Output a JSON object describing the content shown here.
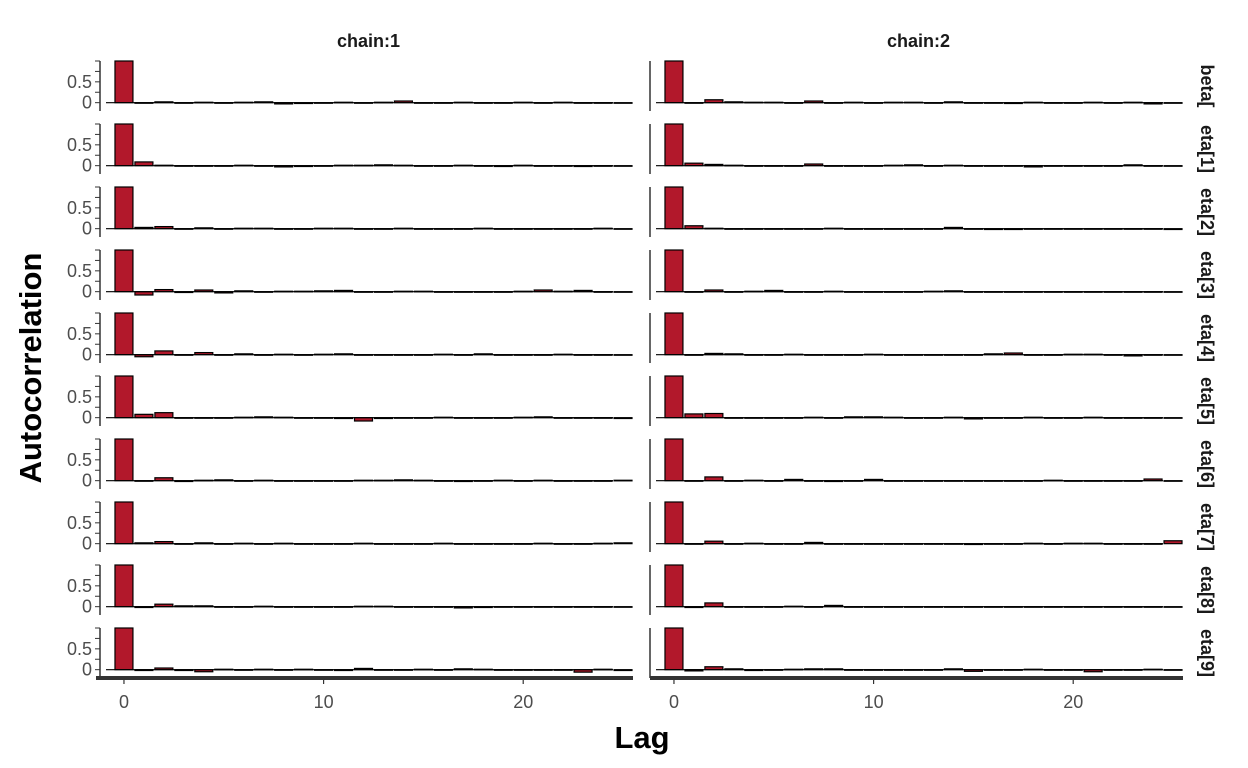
{
  "chart_data": {
    "type": "bar",
    "xlabel": "Lag",
    "ylabel": "Autocorrelation",
    "xlim": [
      -1,
      25.5
    ],
    "ylim": [
      -0.2,
      1
    ],
    "x_ticks": [
      "0",
      "10",
      "20"
    ],
    "y_ticks": [
      "0",
      "0.5"
    ],
    "bar_color": "#b2182b",
    "facet_columns": [
      "chain:1",
      "chain:2"
    ],
    "facet_rows": [
      "beta[",
      "eta[1]",
      "eta[2]",
      "eta[3]",
      "eta[4]",
      "eta[5]",
      "eta[6]",
      "eta[7]",
      "eta[8]",
      "eta[9]"
    ],
    "lags": [
      0,
      1,
      2,
      3,
      4,
      5,
      6,
      7,
      8,
      9,
      10,
      11,
      12,
      13,
      14,
      15,
      16,
      17,
      18,
      19,
      20,
      21,
      22,
      23,
      24,
      25
    ],
    "panels": [
      {
        "chain": "chain:1",
        "param": "beta[",
        "values": [
          1.0,
          -0.01,
          0.02,
          0.0,
          0.01,
          -0.01,
          0.01,
          0.02,
          -0.03,
          -0.02,
          -0.01,
          0.01,
          -0.01,
          0.01,
          0.04,
          -0.01,
          0.0,
          0.01,
          0.0,
          -0.01,
          0.01,
          -0.01,
          0.01,
          -0.01,
          0.0,
          -0.01
        ]
      },
      {
        "chain": "chain:1",
        "param": "eta[1]",
        "values": [
          1.0,
          0.09,
          0.01,
          0.0,
          -0.01,
          0.0,
          0.01,
          -0.01,
          -0.03,
          -0.02,
          -0.01,
          0.01,
          0.01,
          0.02,
          0.01,
          0.0,
          -0.01,
          0.01,
          0.0,
          -0.02,
          0.01,
          -0.01,
          -0.01,
          -0.02,
          -0.01,
          0.0
        ]
      },
      {
        "chain": "chain:1",
        "param": "eta[2]",
        "values": [
          1.0,
          0.03,
          0.05,
          0.0,
          0.02,
          0.0,
          0.01,
          0.01,
          -0.01,
          0.0,
          0.01,
          0.01,
          0.0,
          0.0,
          0.01,
          -0.01,
          0.0,
          0.0,
          0.01,
          0.0,
          -0.01,
          0.0,
          -0.01,
          0.0,
          0.01,
          0.0
        ]
      },
      {
        "chain": "chain:1",
        "param": "eta[3]",
        "values": [
          1.0,
          -0.08,
          0.05,
          -0.02,
          0.04,
          -0.03,
          0.02,
          0.0,
          0.01,
          0.01,
          0.02,
          0.03,
          0.0,
          0.0,
          0.01,
          0.01,
          0.0,
          -0.01,
          0.0,
          0.0,
          0.01,
          0.04,
          0.01,
          0.03,
          -0.01,
          0.0
        ]
      },
      {
        "chain": "chain:1",
        "param": "eta[4]",
        "values": [
          1.0,
          -0.05,
          0.09,
          -0.01,
          0.05,
          0.0,
          0.02,
          0.0,
          0.01,
          0.0,
          0.01,
          0.02,
          0.0,
          0.0,
          -0.01,
          0.0,
          0.01,
          0.0,
          0.02,
          0.0,
          0.0,
          0.0,
          0.01,
          0.0,
          -0.01,
          0.0
        ]
      },
      {
        "chain": "chain:1",
        "param": "eta[5]",
        "values": [
          1.0,
          0.08,
          0.12,
          -0.01,
          0.0,
          -0.01,
          0.01,
          0.02,
          0.01,
          0.0,
          0.0,
          -0.02,
          -0.08,
          -0.02,
          0.0,
          0.0,
          0.01,
          -0.01,
          0.0,
          0.0,
          0.01,
          0.02,
          0.0,
          0.0,
          -0.01,
          -0.02
        ]
      },
      {
        "chain": "chain:1",
        "param": "eta[6]",
        "values": [
          1.0,
          0.0,
          0.07,
          -0.02,
          0.01,
          0.02,
          0.0,
          0.01,
          0.0,
          0.0,
          0.0,
          -0.01,
          0.01,
          0.01,
          0.02,
          0.01,
          0.0,
          -0.02,
          -0.01,
          0.01,
          0.0,
          0.01,
          0.0,
          -0.01,
          0.0,
          0.01
        ]
      },
      {
        "chain": "chain:1",
        "param": "eta[7]",
        "values": [
          1.0,
          0.02,
          0.05,
          -0.01,
          0.02,
          -0.01,
          0.01,
          0.0,
          0.01,
          0.0,
          -0.01,
          0.0,
          0.01,
          0.0,
          -0.01,
          0.0,
          0.01,
          0.0,
          0.0,
          -0.01,
          0.0,
          0.01,
          -0.01,
          0.0,
          0.01,
          0.02
        ]
      },
      {
        "chain": "chain:1",
        "param": "eta[8]",
        "values": [
          1.0,
          -0.02,
          0.06,
          0.02,
          0.02,
          -0.01,
          0.0,
          0.01,
          0.0,
          -0.01,
          0.0,
          0.0,
          0.01,
          0.01,
          0.0,
          0.0,
          0.0,
          -0.03,
          -0.02,
          0.0,
          0.0,
          0.0,
          -0.01,
          0.0,
          0.0,
          0.0
        ]
      },
      {
        "chain": "chain:1",
        "param": "eta[9]",
        "values": [
          1.0,
          -0.02,
          0.04,
          -0.02,
          -0.05,
          0.01,
          0.0,
          0.01,
          0.0,
          0.01,
          0.0,
          -0.02,
          0.03,
          0.0,
          0.0,
          0.01,
          0.0,
          0.02,
          0.01,
          -0.01,
          0.0,
          -0.01,
          0.0,
          -0.06,
          0.01,
          -0.02
        ]
      },
      {
        "chain": "chain:2",
        "param": "beta[",
        "values": [
          1.0,
          0.0,
          0.07,
          0.02,
          0.01,
          0.01,
          0.0,
          0.04,
          0.0,
          0.01,
          0.0,
          0.01,
          0.01,
          0.0,
          0.02,
          -0.01,
          0.0,
          -0.02,
          0.01,
          0.0,
          0.0,
          0.01,
          -0.01,
          0.01,
          -0.03,
          0.0
        ]
      },
      {
        "chain": "chain:2",
        "param": "eta[1]",
        "values": [
          1.0,
          0.06,
          0.03,
          0.01,
          -0.01,
          -0.01,
          0.0,
          0.04,
          0.0,
          -0.01,
          0.0,
          0.01,
          0.02,
          0.0,
          0.01,
          0.0,
          0.0,
          0.0,
          -0.03,
          0.0,
          0.0,
          -0.01,
          0.0,
          0.02,
          0.0,
          -0.01
        ]
      },
      {
        "chain": "chain:2",
        "param": "eta[2]",
        "values": [
          1.0,
          0.07,
          0.01,
          0.0,
          0.0,
          -0.01,
          0.0,
          0.0,
          0.01,
          0.0,
          -0.01,
          0.0,
          0.0,
          0.0,
          0.03,
          0.0,
          -0.02,
          -0.02,
          -0.01,
          0.0,
          0.0,
          -0.01,
          0.0,
          0.0,
          0.0,
          -0.02
        ]
      },
      {
        "chain": "chain:2",
        "param": "eta[3]",
        "values": [
          1.0,
          0.0,
          0.04,
          0.0,
          0.01,
          0.03,
          0.0,
          -0.01,
          0.01,
          0.0,
          0.0,
          0.0,
          0.0,
          0.01,
          0.02,
          0.0,
          0.0,
          0.0,
          0.0,
          0.0,
          0.0,
          0.0,
          0.0,
          0.0,
          0.0,
          0.0
        ]
      },
      {
        "chain": "chain:2",
        "param": "eta[4]",
        "values": [
          1.0,
          0.0,
          0.03,
          0.02,
          0.0,
          0.0,
          0.01,
          -0.01,
          0.0,
          0.0,
          0.01,
          0.0,
          0.0,
          -0.01,
          0.0,
          0.0,
          0.02,
          0.04,
          0.0,
          0.0,
          0.01,
          0.01,
          0.0,
          -0.03,
          0.0,
          0.0
        ]
      },
      {
        "chain": "chain:2",
        "param": "eta[5]",
        "values": [
          1.0,
          0.09,
          0.1,
          0.0,
          -0.01,
          0.0,
          0.0,
          0.01,
          0.0,
          0.02,
          0.02,
          0.01,
          0.0,
          -0.01,
          0.01,
          -0.03,
          0.0,
          0.0,
          0.01,
          0.0,
          0.0,
          0.01,
          0.0,
          0.0,
          0.0,
          -0.01
        ]
      },
      {
        "chain": "chain:2",
        "param": "eta[6]",
        "values": [
          1.0,
          0.0,
          0.09,
          -0.01,
          0.01,
          0.0,
          0.03,
          0.0,
          -0.02,
          0.0,
          0.03,
          0.0,
          0.0,
          -0.01,
          0.0,
          0.0,
          -0.01,
          0.0,
          0.0,
          0.01,
          0.0,
          -0.01,
          0.0,
          0.0,
          0.04,
          0.0
        ]
      },
      {
        "chain": "chain:2",
        "param": "eta[7]",
        "values": [
          1.0,
          0.0,
          0.06,
          0.0,
          0.01,
          0.0,
          0.0,
          0.03,
          0.0,
          0.0,
          0.0,
          0.0,
          0.0,
          0.0,
          0.0,
          -0.02,
          0.0,
          0.0,
          0.01,
          0.0,
          0.01,
          0.01,
          0.0,
          -0.01,
          0.0,
          0.07
        ]
      },
      {
        "chain": "chain:2",
        "param": "eta[8]",
        "values": [
          1.0,
          -0.02,
          0.09,
          0.0,
          0.0,
          -0.01,
          0.01,
          0.0,
          0.03,
          0.0,
          0.0,
          0.0,
          0.0,
          0.0,
          0.0,
          0.0,
          0.0,
          0.0,
          -0.01,
          0.0,
          0.0,
          0.0,
          0.0,
          0.0,
          0.0,
          0.0
        ]
      },
      {
        "chain": "chain:2",
        "param": "eta[9]",
        "values": [
          1.0,
          -0.03,
          0.07,
          0.02,
          -0.02,
          0.0,
          0.01,
          0.02,
          0.02,
          0.0,
          0.0,
          0.0,
          0.0,
          0.0,
          0.02,
          -0.04,
          0.0,
          0.0,
          0.01,
          -0.01,
          0.0,
          -0.05,
          0.0,
          0.0,
          0.01,
          0.0
        ]
      }
    ]
  }
}
